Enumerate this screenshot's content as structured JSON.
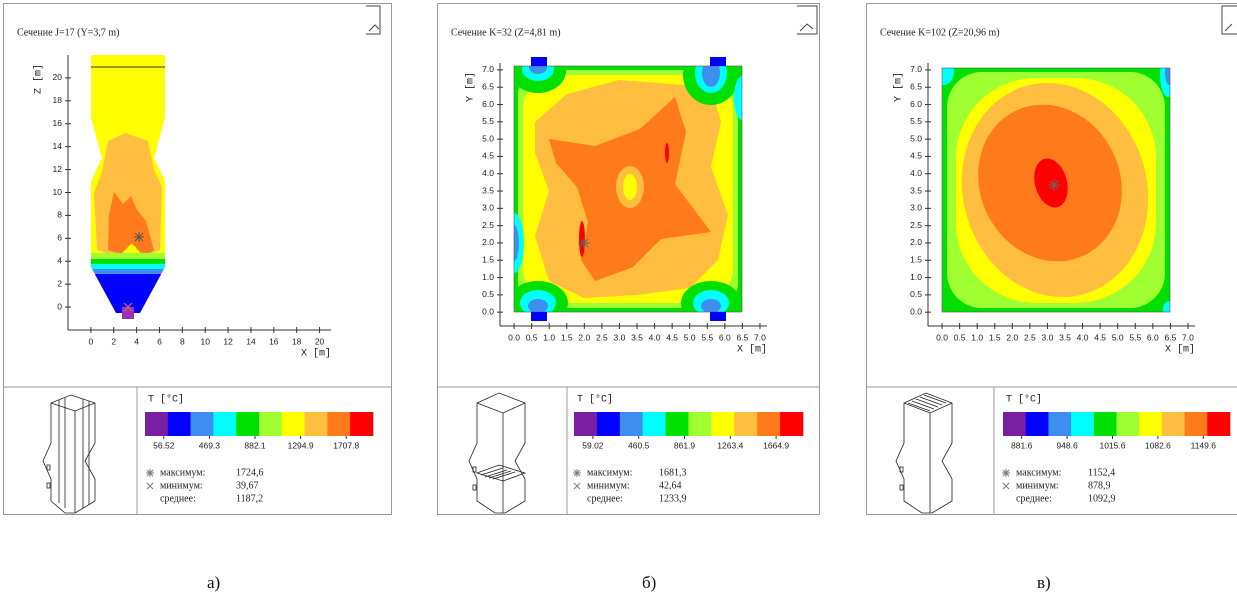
{
  "chart_data": [
    {
      "type": "contour",
      "title": "Сечение J=17 (Y=3,7 m)",
      "x_label": "X [m]",
      "y_label": "Z [m]",
      "xlim": [
        -2,
        21
      ],
      "ylim": [
        -2,
        22
      ],
      "xticks": [
        0,
        2,
        4,
        6,
        8,
        10,
        12,
        14,
        16,
        18,
        20
      ],
      "yticks": [
        0,
        2,
        4,
        6,
        8,
        10,
        12,
        14,
        16,
        18,
        20
      ],
      "colorbar": {
        "title": "T [°C]",
        "colors": [
          "#7b1fa2",
          "#0000ff",
          "#3d8ef0",
          "#00ffff",
          "#00e000",
          "#a0ff30",
          "#ffff00",
          "#ffbe40",
          "#ff7a1a",
          "#ff0000"
        ],
        "ticks": [
          56.52,
          469.3,
          882.1,
          1294.9,
          1707.8
        ]
      },
      "stats": [
        {
          "name": "максимум:",
          "value": {
            "value": 1724.6,
            "label": "1724,6"
          }
        },
        {
          "name": "минимум:",
          "value": {
            "value": 39.67,
            "label": "39,67"
          }
        },
        {
          "name": "среднее:",
          "value": {
            "value": 1187.2,
            "label": "1187,2"
          }
        }
      ],
      "caption": "а)"
    },
    {
      "type": "contour",
      "title": "Сечение K=32 (Z=4,81 m)",
      "x_label": "X [m]",
      "y_label": "Y [m]",
      "xlim": [
        -0.4,
        7.2
      ],
      "ylim": [
        -0.4,
        7.2
      ],
      "xticks": [
        {
          "value": 0,
          "label": "0.0"
        },
        0.5,
        {
          "value": 1,
          "label": "1.0"
        },
        1.5,
        {
          "value": 2,
          "label": "2.0"
        },
        2.5,
        {
          "value": 3,
          "label": "3.0"
        },
        3.5,
        {
          "value": 4,
          "label": "4.0"
        },
        4.5,
        {
          "value": 5,
          "label": "5.0"
        },
        5.5,
        {
          "value": 6,
          "label": "6.0"
        },
        6.5,
        {
          "value": 7,
          "label": "7.0"
        }
      ],
      "yticks": [
        {
          "value": 0,
          "label": "0.0"
        },
        0.5,
        {
          "value": 1,
          "label": "1.0"
        },
        1.5,
        {
          "value": 2,
          "label": "2.0"
        },
        2.5,
        {
          "value": 3,
          "label": "3.0"
        },
        3.5,
        {
          "value": 4,
          "label": "4.0"
        },
        4.5,
        {
          "value": 5,
          "label": "5.0"
        },
        5.5,
        {
          "value": 6,
          "label": "6.0"
        },
        6.5,
        {
          "value": 7,
          "label": "7.0"
        }
      ],
      "colorbar": {
        "title": "T [°C]",
        "colors": [
          "#7b1fa2",
          "#0000ff",
          "#3d8ef0",
          "#00ffff",
          "#00e000",
          "#a0ff30",
          "#ffff00",
          "#ffbe40",
          "#ff7a1a",
          "#ff0000"
        ],
        "ticks": [
          59.02,
          460.5,
          861.9,
          1263.4,
          1664.9
        ]
      },
      "stats": [
        {
          "name": "максимум:",
          "value": {
            "value": 1681.3,
            "label": "1681,3"
          }
        },
        {
          "name": "минимум:",
          "value": {
            "value": 42.64,
            "label": "42,64"
          }
        },
        {
          "name": "среднее:",
          "value": {
            "value": 1233.9,
            "label": "1233,9"
          }
        }
      ],
      "caption": "б)"
    },
    {
      "type": "contour",
      "title": "Сечение K=102 (Z=20,96 m)",
      "x_label": "X [m]",
      "y_label": "Y [m]",
      "xlim": [
        -0.4,
        7.2
      ],
      "ylim": [
        -0.4,
        7.2
      ],
      "xticks": [
        {
          "value": 0,
          "label": "0.0"
        },
        0.5,
        {
          "value": 1,
          "label": "1.0"
        },
        1.5,
        {
          "value": 2,
          "label": "2.0"
        },
        2.5,
        {
          "value": 3,
          "label": "3.0"
        },
        3.5,
        {
          "value": 4,
          "label": "4.0"
        },
        4.5,
        {
          "value": 5,
          "label": "5.0"
        },
        5.5,
        {
          "value": 6,
          "label": "6.0"
        },
        6.5,
        {
          "value": 7,
          "label": "7.0"
        }
      ],
      "yticks": [
        {
          "value": 0,
          "label": "0.0"
        },
        0.5,
        {
          "value": 1,
          "label": "1.0"
        },
        1.5,
        {
          "value": 2,
          "label": "2.0"
        },
        2.5,
        {
          "value": 3,
          "label": "3.0"
        },
        3.5,
        {
          "value": 4,
          "label": "4.0"
        },
        4.5,
        {
          "value": 5,
          "label": "5.0"
        },
        5.5,
        {
          "value": 6,
          "label": "6.0"
        },
        6.5,
        {
          "value": 7,
          "label": "7.0"
        }
      ],
      "colorbar": {
        "title": "T [°C]",
        "colors": [
          "#7b1fa2",
          "#0000ff",
          "#3d8ef0",
          "#00ffff",
          "#00e000",
          "#a0ff30",
          "#ffff00",
          "#ffbe40",
          "#ff7a1a",
          "#ff0000"
        ],
        "ticks": [
          881.6,
          948.6,
          1015.6,
          1082.6,
          1149.6
        ]
      },
      "stats": [
        {
          "name": "максимум:",
          "value": {
            "value": 1152.4,
            "label": "1152,4"
          }
        },
        {
          "name": "минимум:",
          "value": {
            "value": 878.9,
            "label": "878,9"
          }
        },
        {
          "name": "среднее:",
          "value": {
            "value": 1092.9,
            "label": "1092,9"
          }
        }
      ],
      "caption": "в)"
    }
  ]
}
